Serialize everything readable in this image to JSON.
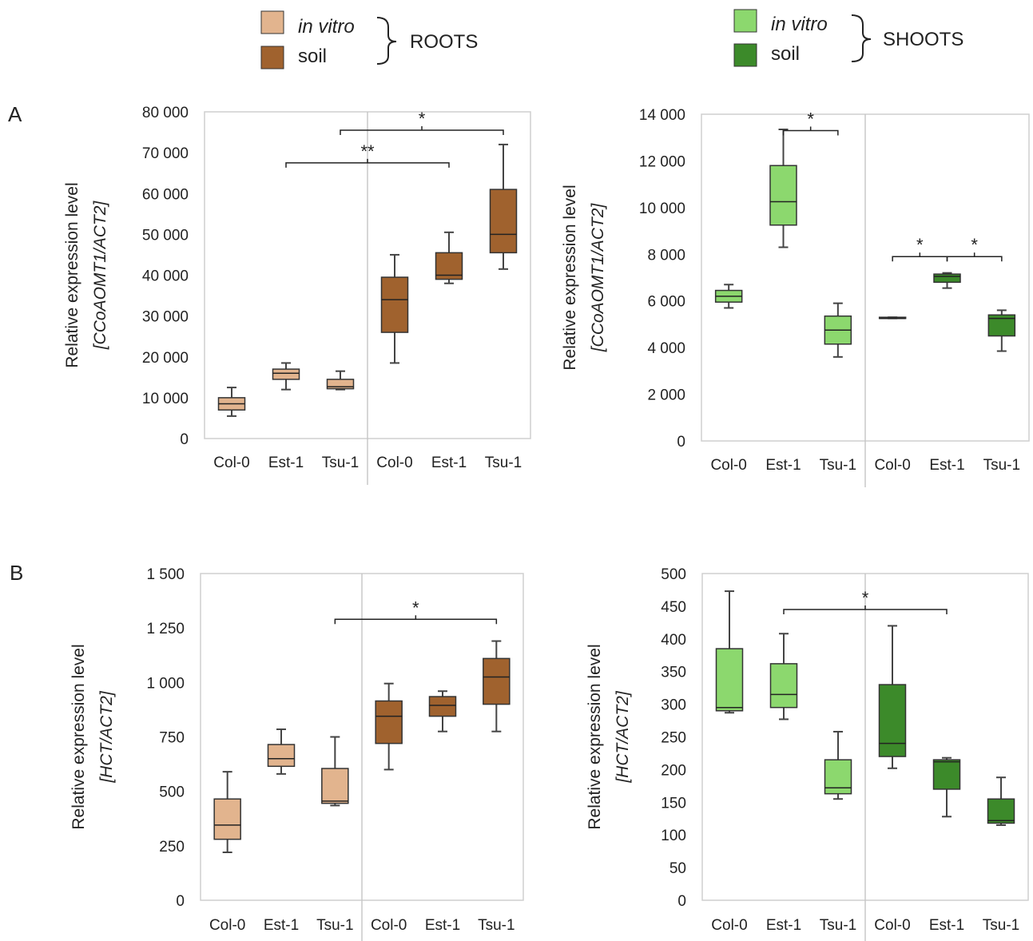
{
  "legends": [
    {
      "group": "ROOTS",
      "entries": [
        {
          "label": "in vitro",
          "italic": true,
          "color": "#E2B48E"
        },
        {
          "label": "soil",
          "italic": false,
          "color": "#A0622E"
        }
      ]
    },
    {
      "group": "SHOOTS",
      "entries": [
        {
          "label": "in vitro",
          "italic": true,
          "color": "#8CD86E"
        },
        {
          "label": "soil",
          "italic": false,
          "color": "#3C8A2A"
        }
      ]
    }
  ],
  "panel_labels": [
    "A",
    "B"
  ],
  "chart_data": [
    {
      "type": "box",
      "panel": "A",
      "tissue": "ROOTS",
      "ylabel": [
        "Relative expression level",
        "[CCoAOMT1/ACT2]"
      ],
      "ylim": [
        0,
        80000
      ],
      "yticks": [
        0,
        10000,
        20000,
        30000,
        40000,
        50000,
        60000,
        70000,
        80000
      ],
      "ytick_labels": [
        "0",
        "10 000",
        "20 000",
        "30 000",
        "40 000",
        "50 000",
        "60 000",
        "70 000",
        "80 000"
      ],
      "categories": [
        "Col-0",
        "Est-1",
        "Tsu-1",
        "Col-0",
        "Est-1",
        "Tsu-1"
      ],
      "boxes": [
        {
          "series": "in vitro",
          "min": 5500,
          "q1": 7000,
          "median": 8500,
          "q3": 10000,
          "max": 12500
        },
        {
          "series": "in vitro",
          "min": 12000,
          "q1": 14500,
          "median": 16000,
          "q3": 17000,
          "max": 18500
        },
        {
          "series": "in vitro",
          "min": 12000,
          "q1": 12200,
          "median": 12700,
          "q3": 14500,
          "max": 16500
        },
        {
          "series": "soil",
          "min": 18500,
          "q1": 26000,
          "median": 34000,
          "q3": 39500,
          "max": 45000
        },
        {
          "series": "soil",
          "min": 38000,
          "q1": 39000,
          "median": 40000,
          "q3": 45500,
          "max": 50500
        },
        {
          "series": "soil",
          "min": 41500,
          "q1": 45500,
          "median": 50000,
          "q3": 61000,
          "max": 72000
        }
      ],
      "significance": [
        {
          "from": 1,
          "to": 4,
          "y": 67500,
          "label": "**"
        },
        {
          "from": 2,
          "to": 5,
          "y": 75500,
          "label": "*"
        }
      ]
    },
    {
      "type": "box",
      "panel": "A",
      "tissue": "SHOOTS",
      "ylabel": [
        "Relative expression level",
        "[CCoAOMT1/ACT2]"
      ],
      "ylim": [
        0,
        14000
      ],
      "yticks": [
        0,
        2000,
        4000,
        6000,
        8000,
        10000,
        12000,
        14000
      ],
      "ytick_labels": [
        "0",
        "2 000",
        "4 000",
        "6 000",
        "8 000",
        "10 000",
        "12 000",
        "14 000"
      ],
      "categories": [
        "Col-0",
        "Est-1",
        "Tsu-1",
        "Col-0",
        "Est-1",
        "Tsu-1"
      ],
      "boxes": [
        {
          "series": "in vitro",
          "min": 5700,
          "q1": 5950,
          "median": 6200,
          "q3": 6450,
          "max": 6700
        },
        {
          "series": "in vitro",
          "min": 8300,
          "q1": 9250,
          "median": 10250,
          "q3": 11800,
          "max": 13350
        },
        {
          "series": "in vitro",
          "min": 3600,
          "q1": 4150,
          "median": 4750,
          "q3": 5350,
          "max": 5900
        },
        {
          "series": "soil",
          "min": 5250,
          "q1": 5250,
          "median": 5250,
          "q3": 5300,
          "max": 5300
        },
        {
          "series": "soil",
          "min": 6550,
          "q1": 6800,
          "median": 7050,
          "q3": 7150,
          "max": 7200
        },
        {
          "series": "soil",
          "min": 3850,
          "q1": 4500,
          "median": 5250,
          "q3": 5400,
          "max": 5600
        }
      ],
      "significance": [
        {
          "from": 1,
          "to": 2,
          "y": 13300,
          "label": "*"
        },
        {
          "from": 3,
          "to": 4,
          "y": 7900,
          "label": "*"
        },
        {
          "from": 4,
          "to": 5,
          "y": 7900,
          "label": "*"
        }
      ]
    },
    {
      "type": "box",
      "panel": "B",
      "tissue": "ROOTS",
      "ylabel": [
        "Relative expression level",
        "[HCT/ACT2]"
      ],
      "ylim": [
        0,
        1500
      ],
      "yticks": [
        0,
        250,
        500,
        750,
        1000,
        1250,
        1500
      ],
      "ytick_labels": [
        "0",
        "250",
        "500",
        "750",
        "1 000",
        "1 250",
        "1 500"
      ],
      "categories": [
        "Col-0",
        "Est-1",
        "Tsu-1",
        "Col-0",
        "Est-1",
        "Tsu-1"
      ],
      "boxes": [
        {
          "series": "in vitro",
          "min": 220,
          "q1": 280,
          "median": 345,
          "q3": 465,
          "max": 590
        },
        {
          "series": "in vitro",
          "min": 580,
          "q1": 615,
          "median": 650,
          "q3": 715,
          "max": 785
        },
        {
          "series": "in vitro",
          "min": 435,
          "q1": 445,
          "median": 455,
          "q3": 605,
          "max": 750
        },
        {
          "series": "soil",
          "min": 600,
          "q1": 720,
          "median": 845,
          "q3": 915,
          "max": 995
        },
        {
          "series": "soil",
          "min": 775,
          "q1": 845,
          "median": 895,
          "q3": 935,
          "max": 960
        },
        {
          "series": "soil",
          "min": 775,
          "q1": 900,
          "median": 1025,
          "q3": 1110,
          "max": 1190
        }
      ],
      "significance": [
        {
          "from": 2,
          "to": 5,
          "y": 1290,
          "label": "*"
        }
      ]
    },
    {
      "type": "box",
      "panel": "B",
      "tissue": "SHOOTS",
      "ylabel": [
        "Relative expression level",
        "[HCT/ACT2]"
      ],
      "ylim": [
        0,
        500
      ],
      "yticks": [
        0,
        50,
        100,
        150,
        200,
        250,
        300,
        350,
        400,
        450,
        500
      ],
      "ytick_labels": [
        "0",
        "50",
        "100",
        "150",
        "200",
        "250",
        "300",
        "350",
        "400",
        "450",
        "500"
      ],
      "categories": [
        "Col-0",
        "Est-1",
        "Tsu-1",
        "Col-0",
        "Est-1",
        "Tsu-1"
      ],
      "boxes": [
        {
          "series": "in vitro",
          "min": 287,
          "q1": 290,
          "median": 295,
          "q3": 385,
          "max": 473
        },
        {
          "series": "in vitro",
          "min": 277,
          "q1": 295,
          "median": 315,
          "q3": 362,
          "max": 408
        },
        {
          "series": "in vitro",
          "min": 155,
          "q1": 163,
          "median": 172,
          "q3": 215,
          "max": 258
        },
        {
          "series": "soil",
          "min": 202,
          "q1": 220,
          "median": 240,
          "q3": 330,
          "max": 420
        },
        {
          "series": "soil",
          "min": 128,
          "q1": 170,
          "median": 212,
          "q3": 215,
          "max": 218
        },
        {
          "series": "soil",
          "min": 115,
          "q1": 118,
          "median": 122,
          "q3": 155,
          "max": 188
        }
      ],
      "significance": [
        {
          "from": 1,
          "to": 4,
          "y": 445,
          "label": "*"
        }
      ]
    }
  ]
}
